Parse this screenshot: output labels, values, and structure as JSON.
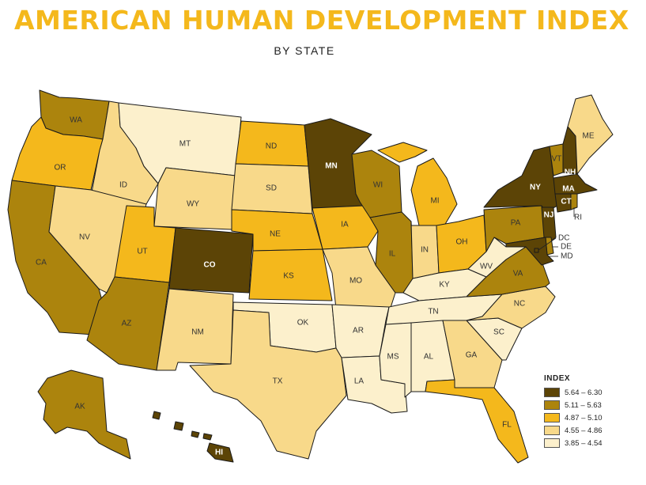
{
  "title": "AMERICAN HUMAN DEVELOPMENT INDEX",
  "subtitle": "BY STATE",
  "colors": {
    "c1": "#5c4406",
    "c2": "#ac840d",
    "c3": "#f4b81c",
    "c4": "#f8d98a",
    "c5": "#fcf0cc",
    "title": "#f4b81c"
  },
  "legend": {
    "title": "INDEX",
    "items": [
      {
        "label": "5.64 – 6.30",
        "color": "#5c4406"
      },
      {
        "label": "5.11 – 5.63",
        "color": "#ac840d"
      },
      {
        "label": "4.87 – 5.10",
        "color": "#f4b81c"
      },
      {
        "label": "4.55 – 4.86",
        "color": "#f8d98a"
      },
      {
        "label": "3.85 – 4.54",
        "color": "#fcf0cc"
      }
    ]
  },
  "states": [
    {
      "abbr": "WA",
      "tier": "c2"
    },
    {
      "abbr": "OR",
      "tier": "c3"
    },
    {
      "abbr": "CA",
      "tier": "c2"
    },
    {
      "abbr": "ID",
      "tier": "c4"
    },
    {
      "abbr": "NV",
      "tier": "c4"
    },
    {
      "abbr": "MT",
      "tier": "c5"
    },
    {
      "abbr": "WY",
      "tier": "c4"
    },
    {
      "abbr": "UT",
      "tier": "c3"
    },
    {
      "abbr": "AZ",
      "tier": "c2"
    },
    {
      "abbr": "CO",
      "tier": "c1"
    },
    {
      "abbr": "NM",
      "tier": "c4"
    },
    {
      "abbr": "ND",
      "tier": "c3"
    },
    {
      "abbr": "SD",
      "tier": "c4"
    },
    {
      "abbr": "NE",
      "tier": "c3"
    },
    {
      "abbr": "KS",
      "tier": "c3"
    },
    {
      "abbr": "OK",
      "tier": "c5"
    },
    {
      "abbr": "TX",
      "tier": "c4"
    },
    {
      "abbr": "MN",
      "tier": "c1"
    },
    {
      "abbr": "IA",
      "tier": "c3"
    },
    {
      "abbr": "MO",
      "tier": "c4"
    },
    {
      "abbr": "AR",
      "tier": "c5"
    },
    {
      "abbr": "LA",
      "tier": "c5"
    },
    {
      "abbr": "WI",
      "tier": "c2"
    },
    {
      "abbr": "IL",
      "tier": "c2"
    },
    {
      "abbr": "MI",
      "tier": "c3"
    },
    {
      "abbr": "IN",
      "tier": "c4"
    },
    {
      "abbr": "OH",
      "tier": "c3"
    },
    {
      "abbr": "KY",
      "tier": "c5"
    },
    {
      "abbr": "TN",
      "tier": "c5"
    },
    {
      "abbr": "MS",
      "tier": "c5"
    },
    {
      "abbr": "AL",
      "tier": "c5"
    },
    {
      "abbr": "GA",
      "tier": "c4"
    },
    {
      "abbr": "FL",
      "tier": "c3"
    },
    {
      "abbr": "SC",
      "tier": "c5"
    },
    {
      "abbr": "NC",
      "tier": "c4"
    },
    {
      "abbr": "VA",
      "tier": "c2"
    },
    {
      "abbr": "WV",
      "tier": "c5"
    },
    {
      "abbr": "PA",
      "tier": "c2"
    },
    {
      "abbr": "NY",
      "tier": "c1"
    },
    {
      "abbr": "VT",
      "tier": "c2"
    },
    {
      "abbr": "NH",
      "tier": "c1"
    },
    {
      "abbr": "ME",
      "tier": "c4"
    },
    {
      "abbr": "MA",
      "tier": "c1"
    },
    {
      "abbr": "CT",
      "tier": "c1"
    },
    {
      "abbr": "RI",
      "tier": "c2"
    },
    {
      "abbr": "NJ",
      "tier": "c1"
    },
    {
      "abbr": "DE",
      "tier": "c2"
    },
    {
      "abbr": "MD",
      "tier": "c1"
    },
    {
      "abbr": "DC",
      "tier": "c1"
    },
    {
      "abbr": "AK",
      "tier": "c2"
    },
    {
      "abbr": "HI",
      "tier": "c1"
    }
  ]
}
